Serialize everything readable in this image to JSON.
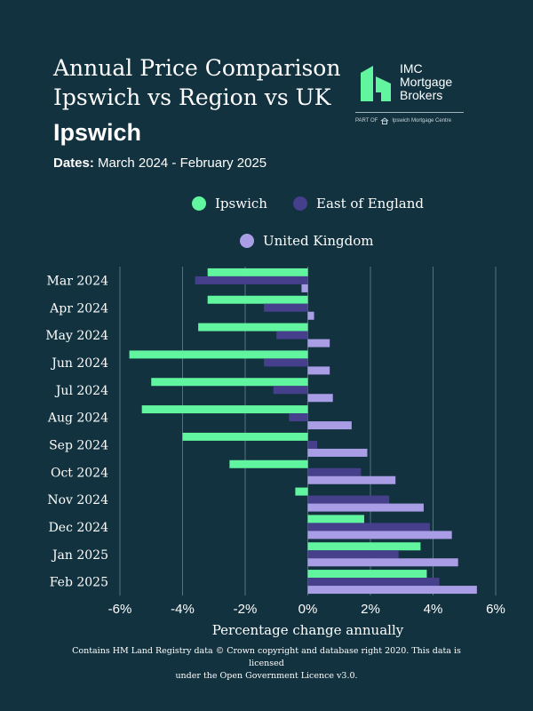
{
  "header": {
    "title": "Annual Price Comparison Ipswich vs Region vs UK",
    "subtitle": "Ipswich",
    "dates_label": "Dates:",
    "dates_value": "March 2024 - February 2025"
  },
  "logo": {
    "line1": "IMC",
    "line2": "Mortgage",
    "line3": "Brokers",
    "part_of": "PART OF",
    "parent": "Ipswich Mortgage Centre"
  },
  "colors": {
    "background": "#12323f",
    "ipswich": "#62f59f",
    "east_of_england": "#453f8c",
    "united_kingdom": "#a99ee6",
    "grid": "#58727c"
  },
  "chart_data": {
    "type": "bar",
    "orientation": "horizontal",
    "categories": [
      "Mar 2024",
      "Apr 2024",
      "May 2024",
      "Jun 2024",
      "Jul 2024",
      "Aug 2024",
      "Sep 2024",
      "Oct 2024",
      "Nov 2024",
      "Dec 2024",
      "Jan 2025",
      "Feb 2025"
    ],
    "series": [
      {
        "name": "Ipswich",
        "color": "#62f59f",
        "values": [
          -3.2,
          -3.2,
          -3.5,
          -5.7,
          -5.0,
          -5.3,
          -4.0,
          -2.5,
          -0.4,
          1.8,
          3.6,
          3.8
        ]
      },
      {
        "name": "East of England",
        "color": "#453f8c",
        "values": [
          -3.6,
          -1.4,
          -1.0,
          -1.4,
          -1.1,
          -0.6,
          0.3,
          1.7,
          2.6,
          3.9,
          2.9,
          4.2
        ]
      },
      {
        "name": "United Kingdom",
        "color": "#a99ee6",
        "values": [
          -0.2,
          0.2,
          0.7,
          0.7,
          0.8,
          1.4,
          1.9,
          2.8,
          3.7,
          4.6,
          4.8,
          5.4
        ]
      }
    ],
    "xlabel": "Percentage change annually",
    "xlim": [
      -6,
      6
    ],
    "xticks": [
      "-6%",
      "-4%",
      "-2%",
      "0%",
      "2%",
      "4%",
      "6%"
    ],
    "grid": "vertical",
    "legend_position": "top"
  },
  "footer": {
    "line1": "Contains HM Land Registry data © Crown copyright and database right 2020. This data is licensed",
    "line2": "under the Open Government Licence v3.0."
  }
}
